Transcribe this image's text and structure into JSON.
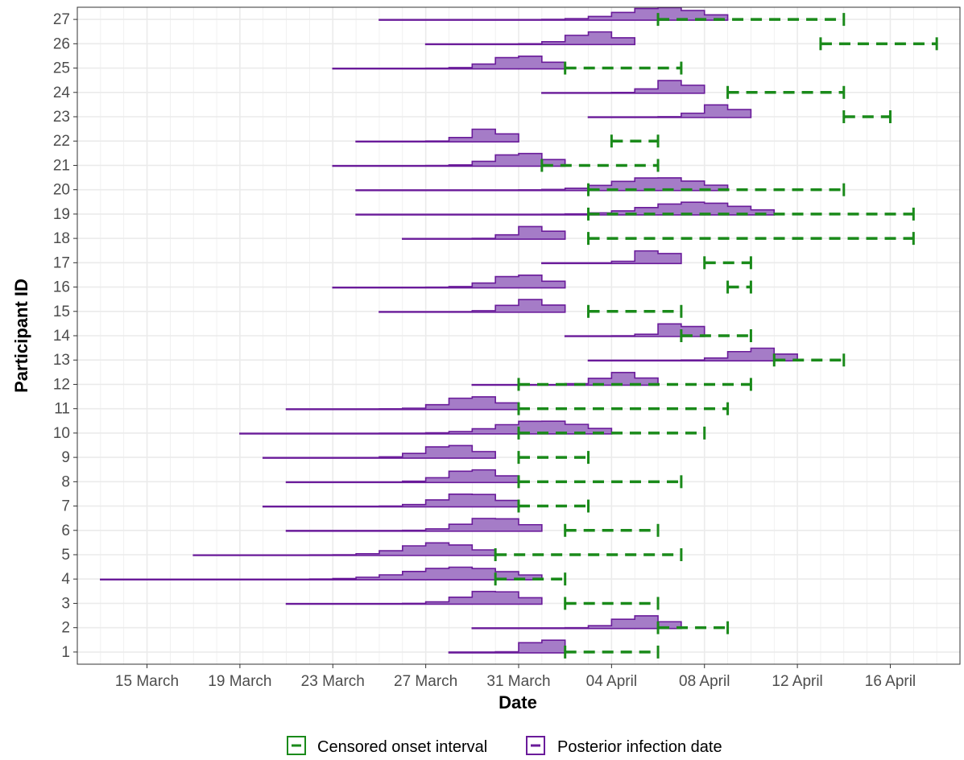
{
  "chart_data": {
    "type": "interval",
    "xlabel": "Date",
    "ylabel": "Participant ID",
    "x_tick_labels": [
      "15 March",
      "19 March",
      "23 March",
      "27 March",
      "31 March",
      "04 April",
      "08 April",
      "12 April",
      "16 April"
    ],
    "x_tick_dates": [
      "2020-03-15",
      "2020-03-19",
      "2020-03-23",
      "2020-03-27",
      "2020-03-31",
      "2020-04-04",
      "2020-04-08",
      "2020-04-12",
      "2020-04-16"
    ],
    "xlim": [
      "2020-03-12",
      "2020-04-19"
    ],
    "y_categories": [
      1,
      2,
      3,
      4,
      5,
      6,
      7,
      8,
      9,
      10,
      11,
      12,
      13,
      14,
      15,
      16,
      17,
      18,
      19,
      20,
      21,
      22,
      23,
      24,
      25,
      26,
      27
    ],
    "grid": true,
    "legend_position": "bottom",
    "colors": {
      "censored": "#1a8a1a",
      "posterior": "#6a1b9a",
      "posterior_fill": "#a57cc7",
      "grid": "#ebebeb"
    },
    "series": [
      {
        "name": "Posterior infection date",
        "values": [
          {
            "id": 1,
            "start": "2020-03-28",
            "end": "2020-04-02"
          },
          {
            "id": 2,
            "start": "2020-03-29",
            "end": "2020-04-07"
          },
          {
            "id": 3,
            "start": "2020-03-21",
            "end": "2020-04-01"
          },
          {
            "id": 4,
            "start": "2020-03-13",
            "end": "2020-04-01"
          },
          {
            "id": 5,
            "start": "2020-03-17",
            "end": "2020-03-30"
          },
          {
            "id": 6,
            "start": "2020-03-21",
            "end": "2020-04-01"
          },
          {
            "id": 7,
            "start": "2020-03-20",
            "end": "2020-03-31"
          },
          {
            "id": 8,
            "start": "2020-03-21",
            "end": "2020-03-31"
          },
          {
            "id": 9,
            "start": "2020-03-20",
            "end": "2020-03-30"
          },
          {
            "id": 10,
            "start": "2020-03-19",
            "end": "2020-04-04"
          },
          {
            "id": 11,
            "start": "2020-03-21",
            "end": "2020-03-31"
          },
          {
            "id": 12,
            "start": "2020-03-29",
            "end": "2020-04-06"
          },
          {
            "id": 13,
            "start": "2020-04-03",
            "end": "2020-04-12"
          },
          {
            "id": 14,
            "start": "2020-04-02",
            "end": "2020-04-08"
          },
          {
            "id": 15,
            "start": "2020-03-25",
            "end": "2020-04-02"
          },
          {
            "id": 16,
            "start": "2020-03-23",
            "end": "2020-04-02"
          },
          {
            "id": 17,
            "start": "2020-04-01",
            "end": "2020-04-07"
          },
          {
            "id": 18,
            "start": "2020-03-26",
            "end": "2020-04-02"
          },
          {
            "id": 19,
            "start": "2020-03-24",
            "end": "2020-04-11"
          },
          {
            "id": 20,
            "start": "2020-03-24",
            "end": "2020-04-09"
          },
          {
            "id": 21,
            "start": "2020-03-23",
            "end": "2020-04-02"
          },
          {
            "id": 22,
            "start": "2020-03-24",
            "end": "2020-03-31"
          },
          {
            "id": 23,
            "start": "2020-04-03",
            "end": "2020-04-10"
          },
          {
            "id": 24,
            "start": "2020-04-01",
            "end": "2020-04-08"
          },
          {
            "id": 25,
            "start": "2020-03-23",
            "end": "2020-04-02"
          },
          {
            "id": 26,
            "start": "2020-03-27",
            "end": "2020-04-05"
          },
          {
            "id": 27,
            "start": "2020-03-25",
            "end": "2020-04-09"
          }
        ]
      },
      {
        "name": "Censored onset interval",
        "values": [
          {
            "id": 1,
            "start": "2020-04-02",
            "end": "2020-04-06"
          },
          {
            "id": 2,
            "start": "2020-04-06",
            "end": "2020-04-09"
          },
          {
            "id": 3,
            "start": "2020-04-02",
            "end": "2020-04-06"
          },
          {
            "id": 4,
            "start": "2020-03-30",
            "end": "2020-04-02"
          },
          {
            "id": 5,
            "start": "2020-03-30",
            "end": "2020-04-07"
          },
          {
            "id": 6,
            "start": "2020-04-02",
            "end": "2020-04-06"
          },
          {
            "id": 7,
            "start": "2020-03-31",
            "end": "2020-04-03"
          },
          {
            "id": 8,
            "start": "2020-03-31",
            "end": "2020-04-07"
          },
          {
            "id": 9,
            "start": "2020-03-31",
            "end": "2020-04-03"
          },
          {
            "id": 10,
            "start": "2020-03-31",
            "end": "2020-04-08"
          },
          {
            "id": 11,
            "start": "2020-03-31",
            "end": "2020-04-09"
          },
          {
            "id": 12,
            "start": "2020-03-31",
            "end": "2020-04-10"
          },
          {
            "id": 13,
            "start": "2020-04-11",
            "end": "2020-04-14"
          },
          {
            "id": 14,
            "start": "2020-04-07",
            "end": "2020-04-10"
          },
          {
            "id": 15,
            "start": "2020-04-03",
            "end": "2020-04-07"
          },
          {
            "id": 16,
            "start": "2020-04-09",
            "end": "2020-04-10"
          },
          {
            "id": 17,
            "start": "2020-04-08",
            "end": "2020-04-10"
          },
          {
            "id": 18,
            "start": "2020-04-03",
            "end": "2020-04-17"
          },
          {
            "id": 19,
            "start": "2020-04-03",
            "end": "2020-04-17"
          },
          {
            "id": 20,
            "start": "2020-04-03",
            "end": "2020-04-14"
          },
          {
            "id": 21,
            "start": "2020-04-01",
            "end": "2020-04-06"
          },
          {
            "id": 22,
            "start": "2020-04-04",
            "end": "2020-04-06"
          },
          {
            "id": 23,
            "start": "2020-04-14",
            "end": "2020-04-16"
          },
          {
            "id": 24,
            "start": "2020-04-09",
            "end": "2020-04-14"
          },
          {
            "id": 25,
            "start": "2020-04-02",
            "end": "2020-04-07"
          },
          {
            "id": 26,
            "start": "2020-04-13",
            "end": "2020-04-18"
          },
          {
            "id": 27,
            "start": "2020-04-06",
            "end": "2020-04-14"
          }
        ]
      }
    ],
    "legend": [
      {
        "key": "censored",
        "label": "Censored onset interval"
      },
      {
        "key": "posterior",
        "label": "Posterior infection date"
      }
    ]
  }
}
